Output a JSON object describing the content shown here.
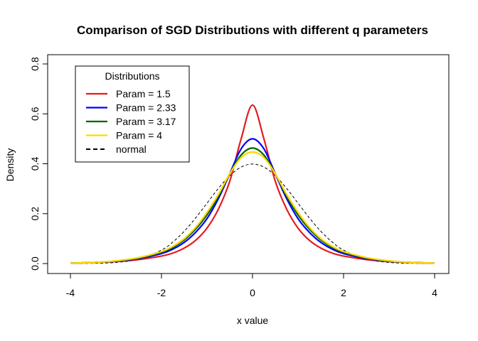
{
  "chart_data": {
    "type": "line",
    "title": "Comparison of SGD Distributions with different q parameters",
    "xlabel": "x value",
    "ylabel": "Density",
    "xlim": [
      -4,
      4
    ],
    "ylim": [
      0,
      0.8
    ],
    "xticks": [
      -4,
      -2,
      0,
      2,
      4
    ],
    "yticks": [
      0.0,
      0.2,
      0.4,
      0.6,
      0.8
    ],
    "xtick_labels": [
      "-4",
      "-2",
      "0",
      "2",
      "4"
    ],
    "ytick_labels": [
      "0.0",
      "0.2",
      "0.4",
      "0.6",
      "0.8"
    ],
    "legend": {
      "title": "Distributions",
      "placement": "top-left"
    },
    "series": [
      {
        "name": "Param = 1.5",
        "color": "#E41A1C",
        "style": "solid",
        "x": [
          -4,
          -3.5,
          -3,
          -2.5,
          -2,
          -1.75,
          -1.5,
          -1.25,
          -1,
          -0.75,
          -0.5,
          -0.25,
          0,
          0.25,
          0.5,
          0.75,
          1,
          1.25,
          1.5,
          1.75,
          2,
          2.5,
          3,
          3.5,
          4
        ],
        "y": [
          0.002,
          0.004,
          0.008,
          0.016,
          0.03,
          0.042,
          0.062,
          0.093,
          0.142,
          0.218,
          0.33,
          0.5,
          0.635,
          0.5,
          0.33,
          0.218,
          0.142,
          0.093,
          0.062,
          0.042,
          0.03,
          0.016,
          0.008,
          0.004,
          0.002
        ]
      },
      {
        "name": "Param = 2.33",
        "color": "#0000FF",
        "style": "solid",
        "x": [
          -4,
          -3.5,
          -3,
          -2.5,
          -2,
          -1.75,
          -1.5,
          -1.25,
          -1,
          -0.75,
          -0.5,
          -0.25,
          0,
          0.25,
          0.5,
          0.75,
          1,
          1.25,
          1.5,
          1.75,
          2,
          2.5,
          3,
          3.5,
          4
        ],
        "y": [
          0.002,
          0.004,
          0.009,
          0.02,
          0.04,
          0.058,
          0.085,
          0.125,
          0.18,
          0.26,
          0.36,
          0.46,
          0.5,
          0.46,
          0.36,
          0.26,
          0.18,
          0.125,
          0.085,
          0.058,
          0.04,
          0.02,
          0.009,
          0.004,
          0.002
        ]
      },
      {
        "name": "Param = 3.17",
        "color": "#006400",
        "style": "solid",
        "x": [
          -4,
          -3.5,
          -3,
          -2.5,
          -2,
          -1.75,
          -1.5,
          -1.25,
          -1,
          -0.75,
          -0.5,
          -0.25,
          0,
          0.25,
          0.5,
          0.75,
          1,
          1.25,
          1.5,
          1.75,
          2,
          2.5,
          3,
          3.5,
          4
        ],
        "y": [
          0.002,
          0.004,
          0.01,
          0.022,
          0.045,
          0.065,
          0.095,
          0.138,
          0.195,
          0.27,
          0.36,
          0.435,
          0.463,
          0.435,
          0.36,
          0.27,
          0.195,
          0.138,
          0.095,
          0.065,
          0.045,
          0.022,
          0.01,
          0.004,
          0.002
        ]
      },
      {
        "name": "Param = 4",
        "color": "#FFD700",
        "style": "solid",
        "x": [
          -4,
          -3.5,
          -3,
          -2.5,
          -2,
          -1.75,
          -1.5,
          -1.25,
          -1,
          -0.75,
          -0.5,
          -0.25,
          0,
          0.25,
          0.5,
          0.75,
          1,
          1.25,
          1.5,
          1.75,
          2,
          2.5,
          3,
          3.5,
          4
        ],
        "y": [
          0.002,
          0.004,
          0.011,
          0.024,
          0.048,
          0.069,
          0.1,
          0.145,
          0.205,
          0.277,
          0.36,
          0.425,
          0.447,
          0.425,
          0.36,
          0.277,
          0.205,
          0.145,
          0.1,
          0.069,
          0.048,
          0.024,
          0.011,
          0.004,
          0.002
        ]
      },
      {
        "name": "normal",
        "color": "#000000",
        "style": "dashed",
        "x": [
          -4,
          -3.5,
          -3,
          -2.5,
          -2,
          -1.75,
          -1.5,
          -1.25,
          -1,
          -0.75,
          -0.5,
          -0.25,
          0,
          0.25,
          0.5,
          0.75,
          1,
          1.25,
          1.5,
          1.75,
          2,
          2.5,
          3,
          3.5,
          4
        ],
        "y": [
          0.0001,
          0.0009,
          0.0044,
          0.0175,
          0.054,
          0.0863,
          0.1295,
          0.1826,
          0.242,
          0.3011,
          0.3521,
          0.3867,
          0.3989,
          0.3867,
          0.3521,
          0.3011,
          0.242,
          0.1826,
          0.1295,
          0.0863,
          0.054,
          0.0175,
          0.0044,
          0.0009,
          0.0001
        ]
      }
    ]
  }
}
